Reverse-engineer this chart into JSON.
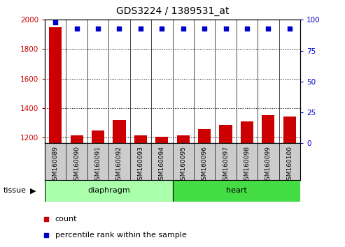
{
  "title": "GDS3224 / 1389531_at",
  "samples": [
    "GSM160089",
    "GSM160090",
    "GSM160091",
    "GSM160092",
    "GSM160093",
    "GSM160094",
    "GSM160095",
    "GSM160096",
    "GSM160097",
    "GSM160098",
    "GSM160099",
    "GSM160100"
  ],
  "counts": [
    1950,
    1215,
    1245,
    1320,
    1215,
    1205,
    1215,
    1255,
    1285,
    1310,
    1350,
    1340
  ],
  "percentile_ranks": [
    98,
    93,
    93,
    93,
    93,
    93,
    93,
    93,
    93,
    93,
    93,
    93
  ],
  "ylim_left": [
    1160,
    2000
  ],
  "ylim_right": [
    0,
    100
  ],
  "yticks_left": [
    1200,
    1400,
    1600,
    1800,
    2000
  ],
  "yticks_right": [
    0,
    25,
    50,
    75,
    100
  ],
  "groups": [
    {
      "label": "diaphragm",
      "start": 0,
      "end": 6,
      "color": "#AAFFAA"
    },
    {
      "label": "heart",
      "start": 6,
      "end": 12,
      "color": "#44DD44"
    }
  ],
  "bar_color": "#CC0000",
  "dot_color": "#0000CC",
  "legend_items": [
    {
      "color": "#CC0000",
      "label": "count"
    },
    {
      "color": "#0000CC",
      "label": "percentile rank within the sample"
    }
  ],
  "tissue_label": "tissue",
  "left_axis_color": "#CC0000",
  "right_axis_color": "#0000CC",
  "tick_bg_color": "#CCCCCC",
  "plot_bg": "#FFFFFF"
}
